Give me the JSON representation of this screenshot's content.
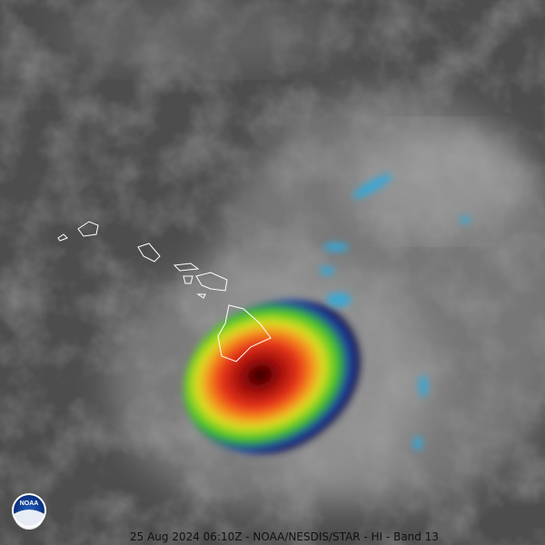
{
  "caption": "25 Aug 2024 06:10Z - NOAA/NESDIS/STAR - HI - Band 13",
  "logo": {
    "label": "NOAA"
  }
}
